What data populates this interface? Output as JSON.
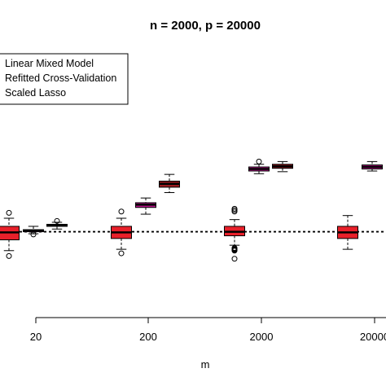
{
  "chart_data": {
    "type": "boxplot",
    "title": "n = 2000, p = 20000",
    "xlabel": "m",
    "ylabel": "",
    "x_ticks": [
      "20",
      "200",
      "2000",
      "20000"
    ],
    "y_range": [
      0.4,
      1.8
    ],
    "reference_line": 1.0,
    "legend": {
      "placement": "top-left",
      "entries": [
        "Linear Mixed Model",
        "Refitted Cross-Validation",
        "Scaled Lasso"
      ]
    },
    "series": [
      {
        "name": "Linear Mixed Model",
        "color": "#e8202a",
        "boxes": [
          {
            "m": "20",
            "whisker_low": 0.86,
            "q1": 0.94,
            "median": 0.995,
            "q3": 1.04,
            "whisker_high": 1.1,
            "outliers": [
              0.82,
              1.14
            ]
          },
          {
            "m": "200",
            "whisker_low": 0.87,
            "q1": 0.95,
            "median": 0.995,
            "q3": 1.04,
            "whisker_high": 1.1,
            "outliers": [
              0.84,
              1.15
            ]
          },
          {
            "m": "2000",
            "whisker_low": 0.9,
            "q1": 0.97,
            "median": 1.0,
            "q3": 1.04,
            "whisker_high": 1.09,
            "outliers": [
              0.86,
              0.865,
              0.87,
              0.875,
              0.88,
              0.8,
              1.15,
              1.16,
              1.17
            ]
          },
          {
            "m": "20000",
            "whisker_low": 0.87,
            "q1": 0.95,
            "median": 0.995,
            "q3": 1.04,
            "whisker_high": 1.12,
            "outliers": []
          }
        ]
      },
      {
        "name": "Refitted Cross-Validation",
        "color": "#c0168f",
        "boxes": [
          {
            "m": "20",
            "whisker_low": 0.985,
            "q1": 1.0,
            "median": 1.01,
            "q3": 1.015,
            "whisker_high": 1.04,
            "outliers": [
              0.98
            ]
          },
          {
            "m": "200",
            "whisker_low": 1.13,
            "q1": 1.18,
            "median": 1.2,
            "q3": 1.215,
            "whisker_high": 1.25,
            "outliers": []
          },
          {
            "m": "2000",
            "whisker_low": 1.43,
            "q1": 1.45,
            "median": 1.465,
            "q3": 1.48,
            "whisker_high": 1.5,
            "outliers": [
              1.52
            ]
          },
          {
            "m": "20000",
            "whisker_low": 1.45,
            "q1": 1.465,
            "median": 1.48,
            "q3": 1.495,
            "whisker_high": 1.52,
            "outliers": []
          }
        ]
      },
      {
        "name": "Scaled Lasso",
        "color": "#9b1a1f",
        "boxes": [
          {
            "m": "20",
            "whisker_low": 1.02,
            "q1": 1.04,
            "median": 1.05,
            "q3": 1.055,
            "whisker_high": 1.07,
            "outliers": [
              1.08
            ]
          },
          {
            "m": "200",
            "whisker_low": 1.29,
            "q1": 1.33,
            "median": 1.355,
            "q3": 1.375,
            "whisker_high": 1.425,
            "outliers": []
          },
          {
            "m": "2000",
            "whisker_low": 1.445,
            "q1": 1.47,
            "median": 1.485,
            "q3": 1.5,
            "whisker_high": 1.52,
            "outliers": []
          }
        ]
      }
    ]
  }
}
